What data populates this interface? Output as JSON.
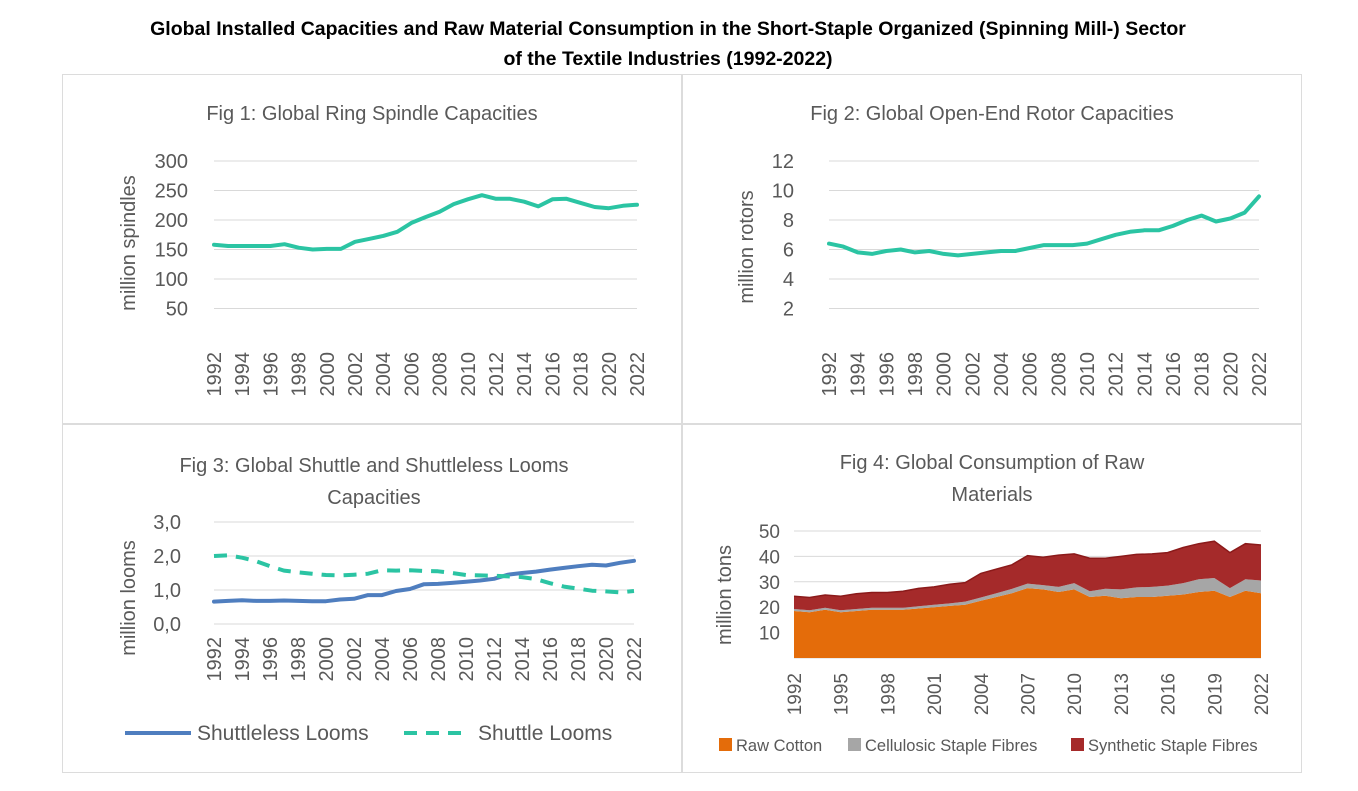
{
  "page": {
    "title_line1": "Global Installed Capacities and Raw Material Consumption in the Short-Staple Organized (Spinning Mill-) Sector",
    "title_line2": "of the Textile Industries (1992-2022)"
  },
  "colors": {
    "teal": "#2bc4a3",
    "blue": "#4f7ebf",
    "cotton": "#e46c0a",
    "cellulosic": "#a6a6a6",
    "synthetic": "#a52a2a",
    "grid": "#d9d9d9",
    "text": "#595959"
  },
  "chart_data": [
    {
      "type": "line",
      "title": "Fig 1: Global Ring Spindle Capacities",
      "ylabel": "million spindles",
      "xlabel": "",
      "ylim": [
        0,
        300
      ],
      "yticks": [
        "300",
        "250",
        "200",
        "150",
        "100",
        "50"
      ],
      "ytick_values": [
        300,
        250,
        200,
        150,
        100,
        50
      ],
      "x_tick_labels": [
        "1992",
        "1994",
        "1996",
        "1998",
        "2000",
        "2002",
        "2004",
        "2006",
        "2008",
        "2010",
        "2012",
        "2014",
        "2016",
        "2018",
        "2020",
        "2022"
      ],
      "x": [
        1992,
        1993,
        1994,
        1995,
        1996,
        1997,
        1998,
        1999,
        2000,
        2001,
        2002,
        2003,
        2004,
        2005,
        2006,
        2007,
        2008,
        2009,
        2010,
        2011,
        2012,
        2013,
        2014,
        2015,
        2016,
        2017,
        2018,
        2019,
        2020,
        2021,
        2022
      ],
      "series": [
        {
          "name": "Ring Spindles",
          "values": [
            158,
            156,
            156,
            156,
            156,
            159,
            153,
            150,
            151,
            151,
            163,
            168,
            173,
            180,
            195,
            205,
            214,
            227,
            235,
            242,
            236,
            236,
            231,
            223,
            235,
            236,
            229,
            222,
            220,
            224,
            226
          ]
        }
      ]
    },
    {
      "type": "line",
      "title": "Fig 2: Global Open-End Rotor Capacities",
      "ylabel": "million rotors",
      "xlabel": "",
      "ylim": [
        0,
        12
      ],
      "yticks": [
        "12",
        "10",
        "8",
        "6",
        "4",
        "2"
      ],
      "ytick_values": [
        12,
        10,
        8,
        6,
        4,
        2
      ],
      "x_tick_labels": [
        "1992",
        "1994",
        "1996",
        "1998",
        "2000",
        "2002",
        "2004",
        "2006",
        "2008",
        "2010",
        "2012",
        "2014",
        "2016",
        "2018",
        "2020",
        "2022"
      ],
      "x": [
        1992,
        1993,
        1994,
        1995,
        1996,
        1997,
        1998,
        1999,
        2000,
        2001,
        2002,
        2003,
        2004,
        2005,
        2006,
        2007,
        2008,
        2009,
        2010,
        2011,
        2012,
        2013,
        2014,
        2015,
        2016,
        2017,
        2018,
        2019,
        2020,
        2021,
        2022
      ],
      "series": [
        {
          "name": "Open-End Rotors",
          "values": [
            6.4,
            6.2,
            5.8,
            5.7,
            5.9,
            6.0,
            5.8,
            5.9,
            5.7,
            5.6,
            5.7,
            5.8,
            5.9,
            5.9,
            6.1,
            6.3,
            6.3,
            6.3,
            6.4,
            6.7,
            7.0,
            7.2,
            7.3,
            7.3,
            7.6,
            8.0,
            8.3,
            7.9,
            8.1,
            8.5,
            9.6
          ]
        }
      ]
    },
    {
      "type": "line",
      "title_line1": "Fig 3: Global Shuttle and Shuttleless Looms",
      "title_line2": "Capacities",
      "ylabel": "million looms",
      "xlabel": "",
      "ylim": [
        0,
        3
      ],
      "yticks": [
        "3,0",
        "2,0",
        "1,0",
        "0,0"
      ],
      "ytick_values": [
        3,
        2,
        1,
        0
      ],
      "x_tick_labels": [
        "1992",
        "1994",
        "1996",
        "1998",
        "2000",
        "2002",
        "2004",
        "2006",
        "2008",
        "2010",
        "2012",
        "2014",
        "2016",
        "2018",
        "2020",
        "2022"
      ],
      "x": [
        1992,
        1993,
        1994,
        1995,
        1996,
        1997,
        1998,
        1999,
        2000,
        2001,
        2002,
        2003,
        2004,
        2005,
        2006,
        2007,
        2008,
        2009,
        2010,
        2011,
        2012,
        2013,
        2014,
        2015,
        2016,
        2017,
        2018,
        2019,
        2020,
        2021,
        2022
      ],
      "series": [
        {
          "name": "Shuttleless Looms",
          "style": "solid",
          "values": [
            0.66,
            0.68,
            0.7,
            0.68,
            0.68,
            0.69,
            0.68,
            0.67,
            0.67,
            0.72,
            0.74,
            0.85,
            0.85,
            0.97,
            1.03,
            1.17,
            1.18,
            1.21,
            1.24,
            1.28,
            1.33,
            1.45,
            1.5,
            1.54,
            1.6,
            1.65,
            1.7,
            1.74,
            1.72,
            1.8,
            1.86
          ]
        },
        {
          "name": "Shuttle Looms",
          "style": "dashed",
          "values": [
            2.0,
            2.02,
            1.95,
            1.85,
            1.7,
            1.57,
            1.52,
            1.48,
            1.44,
            1.43,
            1.45,
            1.48,
            1.58,
            1.57,
            1.58,
            1.56,
            1.55,
            1.5,
            1.44,
            1.43,
            1.42,
            1.4,
            1.38,
            1.32,
            1.2,
            1.1,
            1.04,
            0.98,
            0.96,
            0.93,
            0.97
          ]
        }
      ]
    },
    {
      "type": "area",
      "stacked": true,
      "title_line1": "Fig 4: Global Consumption of Raw",
      "title_line2": "Materials",
      "ylabel": "million tons",
      "xlabel": "",
      "ylim": [
        0,
        50
      ],
      "yticks": [
        "50",
        "40",
        "30",
        "20",
        "10"
      ],
      "ytick_values": [
        50,
        40,
        30,
        20,
        10
      ],
      "x_tick_labels": [
        "1992",
        "1995",
        "1998",
        "2001",
        "2004",
        "2007",
        "2010",
        "2013",
        "2016",
        "2019",
        "2022"
      ],
      "x": [
        1992,
        1993,
        1994,
        1995,
        1996,
        1997,
        1998,
        1999,
        2000,
        2001,
        2002,
        2003,
        2004,
        2005,
        2006,
        2007,
        2008,
        2009,
        2010,
        2011,
        2012,
        2013,
        2014,
        2015,
        2016,
        2017,
        2018,
        2019,
        2020,
        2021,
        2022
      ],
      "series": [
        {
          "name": "Raw Cotton",
          "values": [
            18.5,
            18.0,
            19.0,
            18.0,
            18.5,
            19.0,
            19.0,
            19.0,
            19.5,
            20.0,
            20.5,
            21.0,
            22.5,
            24.0,
            25.5,
            27.5,
            27.0,
            26.0,
            27.0,
            24.0,
            24.5,
            23.5,
            24.0,
            24.0,
            24.5,
            25.0,
            26.0,
            26.5,
            24.0,
            26.5,
            25.5
          ]
        },
        {
          "name": "Cellulosic Staple Fibres",
          "values": [
            0.8,
            0.8,
            0.8,
            0.8,
            0.8,
            0.8,
            0.8,
            0.8,
            0.9,
            1.0,
            1.0,
            1.2,
            1.3,
            1.5,
            1.7,
            1.8,
            1.7,
            2.0,
            2.5,
            2.3,
            2.8,
            3.5,
            3.8,
            4.0,
            4.0,
            4.5,
            5.0,
            5.0,
            3.5,
            4.5,
            5.0
          ]
        },
        {
          "name": "Synthetic Staple Fibres",
          "values": [
            5.0,
            5.0,
            5.0,
            5.5,
            6.0,
            6.0,
            6.0,
            6.5,
            7.0,
            7.0,
            7.5,
            7.5,
            9.5,
            9.5,
            9.5,
            11.0,
            11.0,
            12.5,
            11.5,
            13.0,
            12.0,
            13.0,
            13.0,
            13.0,
            13.0,
            14.0,
            14.0,
            14.5,
            14.0,
            14.0,
            14.0
          ]
        }
      ]
    }
  ]
}
